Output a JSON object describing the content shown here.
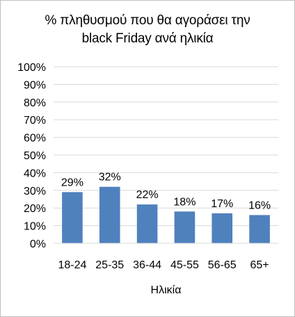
{
  "chart_data": {
    "type": "bar",
    "title_lines": [
      "% πληθυσμού που θα αγοράσει την",
      "black Friday ανά ηλικία"
    ],
    "categories": [
      "18-24",
      "25-35",
      "36-44",
      "45-55",
      "56-65",
      "65+"
    ],
    "values": [
      29,
      32,
      22,
      18,
      17,
      16
    ],
    "data_labels": [
      "29%",
      "32%",
      "22%",
      "18%",
      "17%",
      "16%"
    ],
    "xlabel": "Ηλικία",
    "ylabel": "",
    "ylim": [
      0,
      100
    ],
    "y_ticks": [
      "0%",
      "10%",
      "20%",
      "30%",
      "40%",
      "50%",
      "60%",
      "70%",
      "80%",
      "90%",
      "100%"
    ],
    "grid": true,
    "legend": "none",
    "bar_color": "#4f81bd",
    "grid_color": "#d9d9d9"
  }
}
